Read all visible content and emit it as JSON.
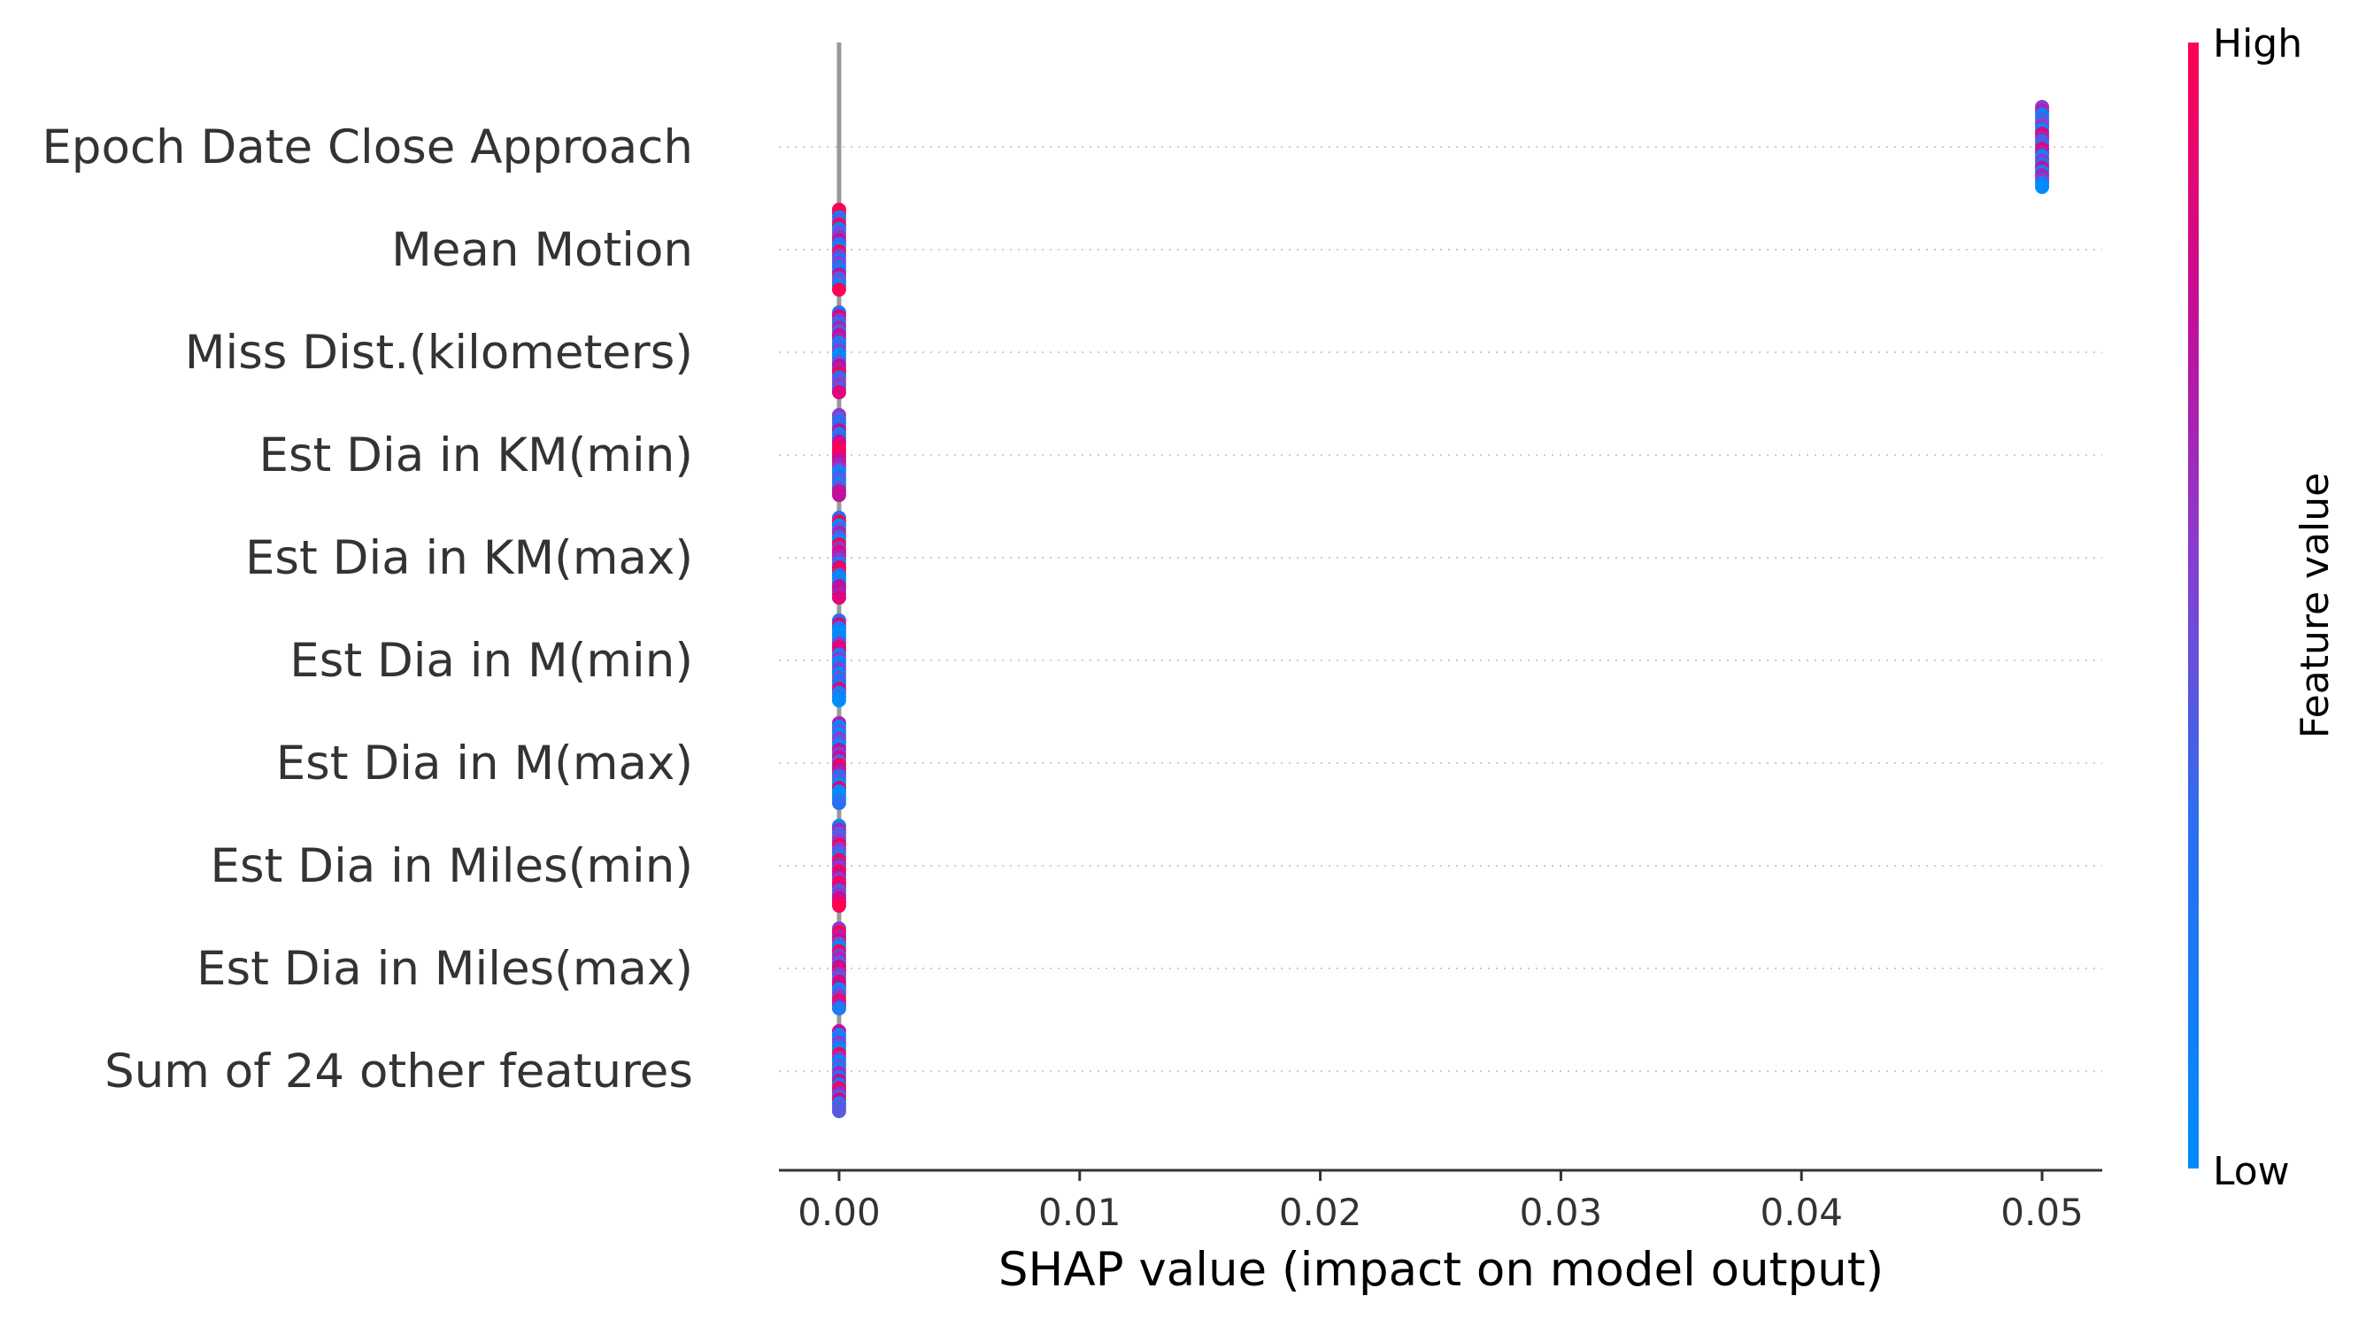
{
  "chart_data": {
    "type": "scatter",
    "subtype": "shap-beeswarm",
    "xlabel": "SHAP value (impact on model output)",
    "xlim": [
      -0.0025,
      0.0525
    ],
    "xticks": [
      0.0,
      0.01,
      0.02,
      0.03,
      0.04,
      0.05
    ],
    "xtick_labels": [
      "0.00",
      "0.01",
      "0.02",
      "0.03",
      "0.04",
      "0.05"
    ],
    "grid": "horizontal dotted lines per feature",
    "features": [
      {
        "name": "Epoch Date Close Approach",
        "shap_value": 0.05
      },
      {
        "name": "Mean Motion",
        "shap_value": 0.0
      },
      {
        "name": "Miss Dist.(kilometers)",
        "shap_value": 0.0
      },
      {
        "name": "Est Dia in KM(min)",
        "shap_value": 0.0
      },
      {
        "name": "Est Dia in KM(max)",
        "shap_value": 0.0
      },
      {
        "name": "Est Dia in M(min)",
        "shap_value": 0.0
      },
      {
        "name": "Est Dia in M(max)",
        "shap_value": 0.0
      },
      {
        "name": "Est Dia in Miles(min)",
        "shap_value": 0.0
      },
      {
        "name": "Est Dia in Miles(max)",
        "shap_value": 0.0
      },
      {
        "name": "Sum of 24 other features",
        "shap_value": 0.0
      }
    ],
    "colorbar": {
      "label": "Feature value",
      "high_label": "High",
      "low_label": "Low",
      "low_color": "#008bfb",
      "mid_color": "#8a3ccf",
      "high_color": "#ff0052"
    },
    "zero_line_color": "#999999"
  }
}
